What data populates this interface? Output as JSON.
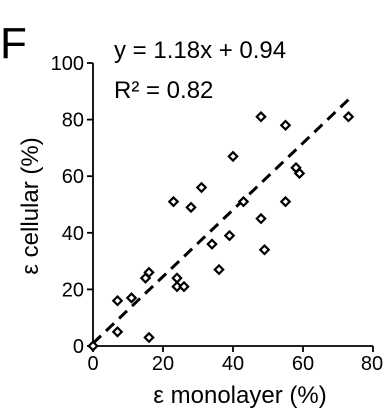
{
  "chart_data": {
    "type": "scatter",
    "panel_label": "F",
    "equation": "y = 1.18x + 0.94",
    "r_squared": "R² = 0.82",
    "xlabel": "ε monolayer (%)",
    "ylabel": "ε cellular (%)",
    "xlim": [
      0,
      80
    ],
    "ylim": [
      0,
      100
    ],
    "x_ticks": [
      "0",
      "20",
      "40",
      "60",
      "80"
    ],
    "y_ticks": [
      "0",
      "20",
      "40",
      "60",
      "80",
      "100"
    ],
    "trendline": {
      "slope": 1.18,
      "intercept": 0.94,
      "x_range": [
        0,
        73
      ],
      "style": "dashed"
    },
    "points": [
      {
        "x": 0,
        "y": 0
      },
      {
        "x": 7,
        "y": 5
      },
      {
        "x": 7,
        "y": 16
      },
      {
        "x": 11,
        "y": 17
      },
      {
        "x": 15,
        "y": 24
      },
      {
        "x": 16,
        "y": 26
      },
      {
        "x": 16,
        "y": 3
      },
      {
        "x": 23,
        "y": 51
      },
      {
        "x": 24,
        "y": 24
      },
      {
        "x": 24,
        "y": 21
      },
      {
        "x": 26,
        "y": 21
      },
      {
        "x": 28,
        "y": 49
      },
      {
        "x": 31,
        "y": 56
      },
      {
        "x": 34,
        "y": 36
      },
      {
        "x": 36,
        "y": 27
      },
      {
        "x": 39,
        "y": 39
      },
      {
        "x": 40,
        "y": 67
      },
      {
        "x": 43,
        "y": 51
      },
      {
        "x": 48,
        "y": 81
      },
      {
        "x": 48,
        "y": 45
      },
      {
        "x": 49,
        "y": 34
      },
      {
        "x": 55,
        "y": 78
      },
      {
        "x": 55,
        "y": 51
      },
      {
        "x": 58,
        "y": 63
      },
      {
        "x": 59,
        "y": 61
      },
      {
        "x": 73,
        "y": 81
      }
    ]
  }
}
